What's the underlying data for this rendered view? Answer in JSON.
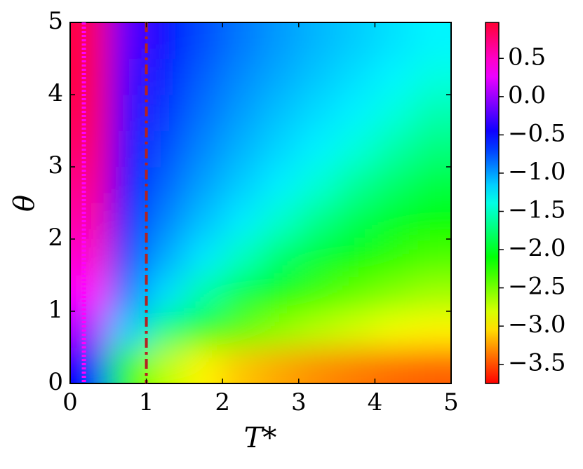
{
  "chart_data": {
    "type": "heatmap",
    "xlabel": "T*",
    "ylabel": "θ",
    "x": [
      0.25,
      0.75,
      1.25,
      1.75,
      2.25,
      2.75,
      3.25,
      3.75,
      4.25,
      4.75
    ],
    "y": [
      0.25,
      0.75,
      1.25,
      1.75,
      2.25,
      2.75,
      3.25,
      3.75,
      4.25,
      4.75
    ],
    "z": [
      [
        -0.5,
        -2.21,
        -2.73,
        -2.97,
        -3.12,
        -3.22,
        -3.3,
        -3.36,
        -3.41,
        -3.44
      ],
      [
        0.05,
        -1.14,
        -1.73,
        -2.15,
        -2.41,
        -2.58,
        -2.71,
        -2.81,
        -2.9,
        -2.96
      ],
      [
        0.31,
        -0.89,
        -1.21,
        -1.59,
        -1.91,
        -2.14,
        -2.31,
        -2.44,
        -2.54,
        -2.63
      ],
      [
        0.48,
        -0.72,
        -1.04,
        -1.24,
        -1.51,
        -1.78,
        -1.98,
        -2.13,
        -2.26,
        -2.36
      ],
      [
        0.6,
        -0.6,
        -0.92,
        -1.11,
        -1.25,
        -1.47,
        -1.69,
        -1.87,
        -2.01,
        -2.13
      ],
      [
        0.7,
        -0.5,
        -0.82,
        -1.01,
        -1.15,
        -1.26,
        -1.44,
        -1.64,
        -1.79,
        -1.92
      ],
      [
        0.79,
        -0.41,
        -0.74,
        -0.93,
        -1.07,
        -1.18,
        -1.27,
        -1.42,
        -1.59,
        -1.73
      ],
      [
        0.86,
        -0.34,
        -0.66,
        -0.86,
        -1.0,
        -1.11,
        -1.2,
        -1.27,
        -1.41,
        -1.56
      ],
      [
        0.9,
        -0.28,
        -0.6,
        -0.8,
        -0.94,
        -1.04,
        -1.13,
        -1.21,
        -1.28,
        -1.4
      ],
      [
        0.9,
        -0.22,
        -0.55,
        -0.74,
        -0.88,
        -0.99,
        -1.08,
        -1.15,
        -1.22,
        -1.28
      ]
    ],
    "xlim": [
      0,
      5
    ],
    "ylim": [
      0,
      5
    ],
    "xticks": [
      0,
      1,
      2,
      3,
      4,
      5
    ],
    "yticks": [
      0,
      1,
      2,
      3,
      4,
      5
    ],
    "clim": [
      -3.75,
      0.97
    ],
    "cticks": [
      {
        "value": 0.5,
        "label": "0.5"
      },
      {
        "value": 0,
        "label": "0.0"
      },
      {
        "value": -0.5,
        "label": "−0.5"
      },
      {
        "value": -1,
        "label": "−1.0"
      },
      {
        "value": -1.5,
        "label": "−1.5"
      },
      {
        "value": -2,
        "label": "−2.0"
      },
      {
        "value": -2.5,
        "label": "−2.5"
      },
      {
        "value": -3,
        "label": "−3.0"
      },
      {
        "value": -3.5,
        "label": "−3.5"
      }
    ],
    "vlines": [
      {
        "x": 0.18,
        "color": "#ff00ff",
        "style": "dotted"
      },
      {
        "x": 1,
        "color": "#b22222",
        "style": "dashdot"
      }
    ]
  }
}
